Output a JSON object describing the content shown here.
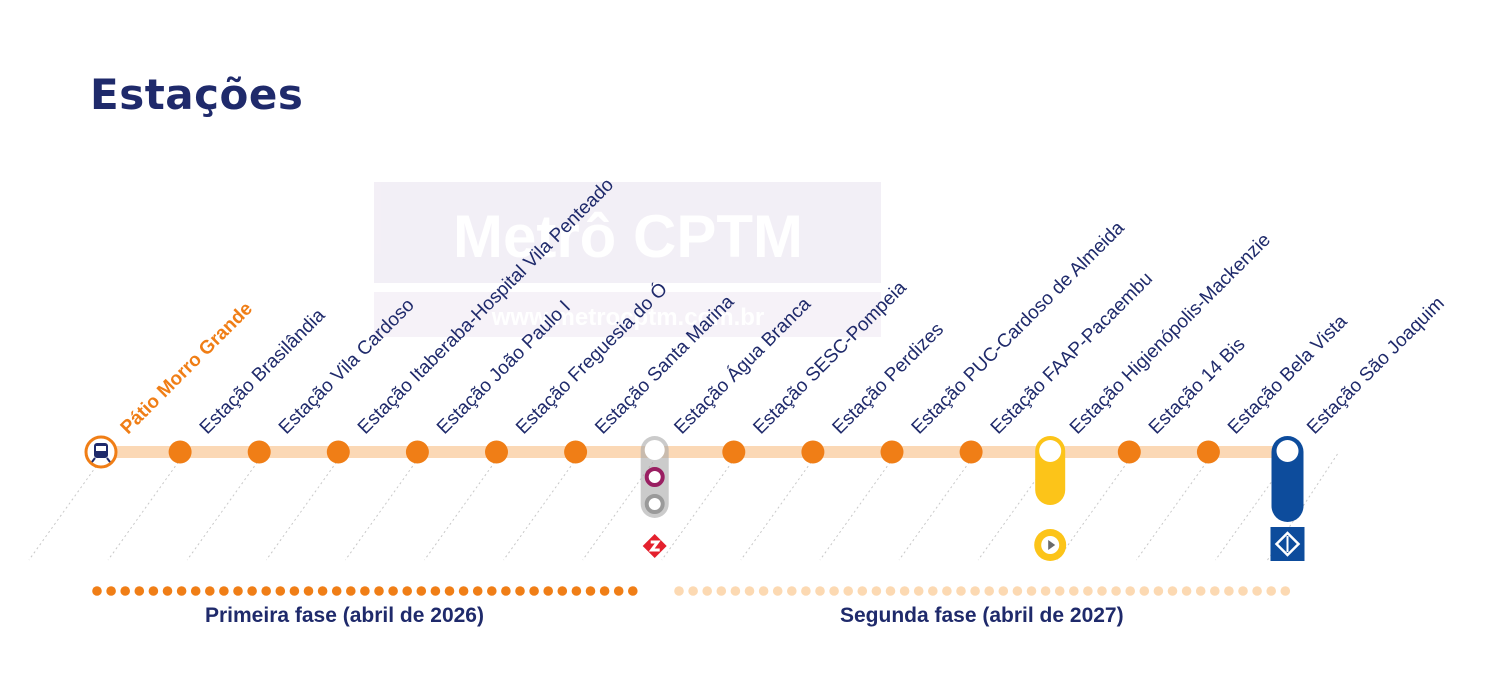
{
  "page": {
    "title": "Estações"
  },
  "watermark": {
    "brand": "Metrô CPTM",
    "url": "www.metrocptm.com.br"
  },
  "line": {
    "color": "#f7a254",
    "track_color": "#fbd8b5",
    "yard": {
      "name": "Pátio Morro Grande",
      "icon": "train-icon",
      "color": "#f07e16"
    },
    "stations": [
      {
        "name": "Estação Brasilândia"
      },
      {
        "name": "Estação Vila Cardoso"
      },
      {
        "name": "Estação Itaberaba-Hospital Vila Penteado"
      },
      {
        "name": "Estação João Paulo I"
      },
      {
        "name": "Estação Freguesia do Ó"
      },
      {
        "name": "Estação Santa Marina"
      },
      {
        "name": "Estação Água Branca",
        "interchange": "cptm",
        "icon": "cptm-logo-icon"
      },
      {
        "name": "Estação SESC-Pompeia"
      },
      {
        "name": "Estação Perdizes"
      },
      {
        "name": "Estação PUC-Cardoso de Almeida"
      },
      {
        "name": "Estação FAAP-Pacaembu"
      },
      {
        "name": "Estação Higienópolis-Mackenzie",
        "interchange": "yellow",
        "icon": "line-4-yellow-icon"
      },
      {
        "name": "Estação 14 Bis"
      },
      {
        "name": "Estação Bela Vista"
      },
      {
        "name": "Estação São Joaquim",
        "interchange": "blue",
        "icon": "metro-logo-icon"
      }
    ]
  },
  "phases": [
    {
      "label": "Primeira fase (abril de 2026)",
      "color": "#f07e16"
    },
    {
      "label": "Segunda fase (abril de 2027)",
      "color": "#fcd9b2"
    }
  ],
  "colors": {
    "title": "#1f2a6b",
    "station_dot": "#f07e16",
    "cptm_red": "#e4202d",
    "cptm_magenta": "#9a1f62",
    "gray_line": "#a9a9a9",
    "yellow_line": "#fcc419",
    "blue_line": "#0d4c9c"
  }
}
